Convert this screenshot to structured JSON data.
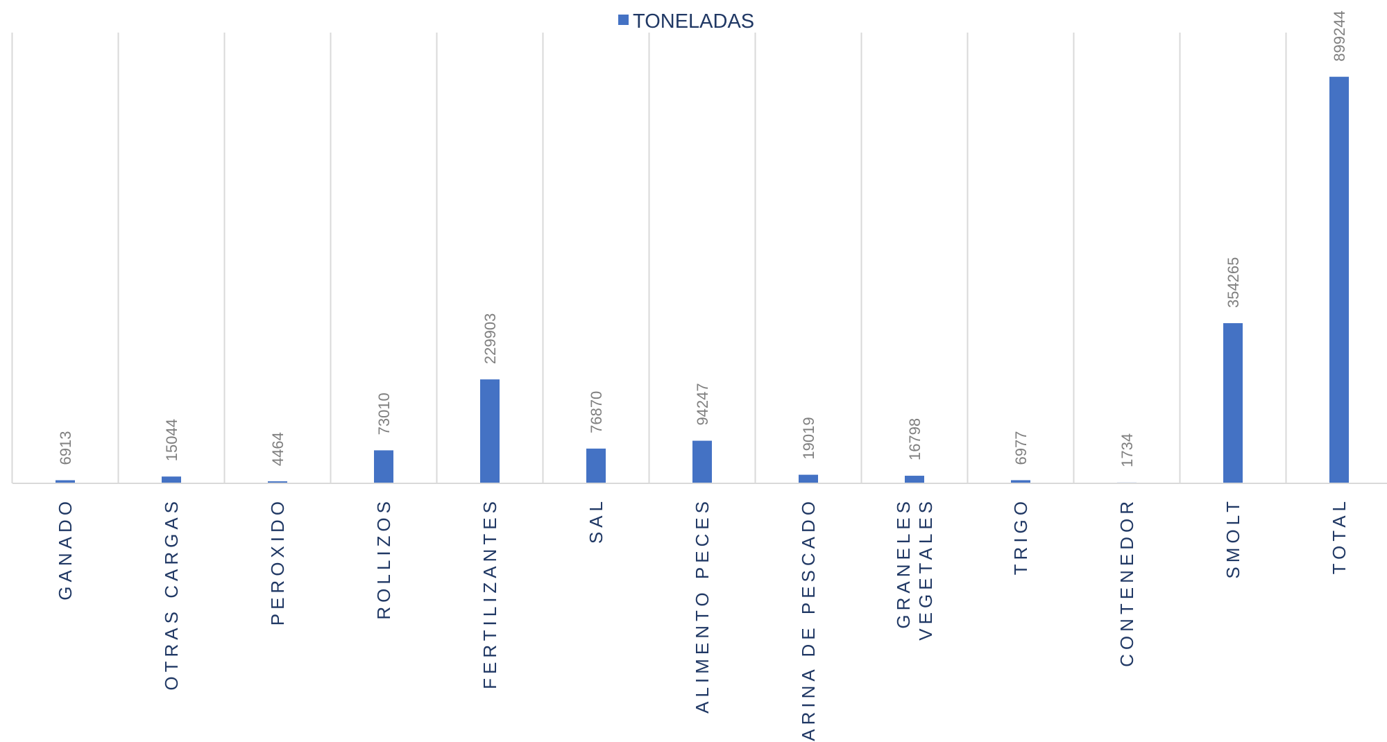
{
  "chart_data": {
    "type": "bar",
    "legend": {
      "position": "top",
      "entries": [
        "TONELADAS"
      ]
    },
    "categories": [
      [
        "GANADO"
      ],
      [
        "OTRAS CARGAS"
      ],
      [
        "PEROXIDO"
      ],
      [
        "ROLLIZOS"
      ],
      [
        "FERTILIZANTES"
      ],
      [
        "SAL"
      ],
      [
        "ALIMENTO PECES"
      ],
      [
        "HARINA DE PESCADO"
      ],
      [
        "GRANELES",
        "VEGETALES"
      ],
      [
        "TRIGO"
      ],
      [
        "CONTENEDOR"
      ],
      [
        "SMOLT"
      ],
      [
        "TOTAL"
      ]
    ],
    "series": [
      {
        "name": "TONELADAS",
        "color": "#4472c4",
        "values": [
          6913,
          15044,
          4464,
          73010,
          229903,
          76870,
          94247,
          19019,
          16798,
          6977,
          1734,
          354265,
          899244
        ],
        "data_labels": true
      }
    ],
    "ylim": [
      0,
      1000000
    ],
    "y_axis_visible": false,
    "grid": {
      "vertical_separators": true,
      "horizontal": false
    },
    "colors": {
      "bar": "#4472c4",
      "text": "#203864",
      "data_label": "#7f7f7f",
      "grid": "#d9d9d9"
    }
  }
}
